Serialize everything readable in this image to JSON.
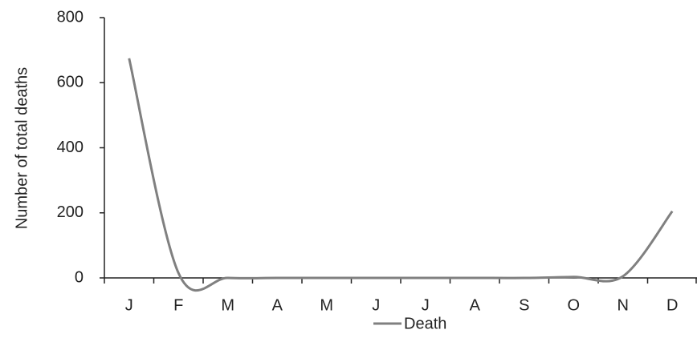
{
  "chart_data": {
    "type": "line",
    "y_label": "Number of total deaths",
    "categories": [
      "J",
      "F",
      "M",
      "A",
      "M",
      "J",
      "J",
      "A",
      "S",
      "O",
      "N",
      "D"
    ],
    "series": [
      {
        "name": "Death",
        "color": "#808080",
        "values": [
          675,
          15,
          0,
          0,
          0,
          0,
          0,
          0,
          0,
          3,
          5,
          205
        ]
      }
    ],
    "ylim": [
      0,
      800
    ],
    "yticks": [
      0,
      200,
      400,
      600,
      800
    ],
    "legend": "bottom",
    "smooth": true
  }
}
